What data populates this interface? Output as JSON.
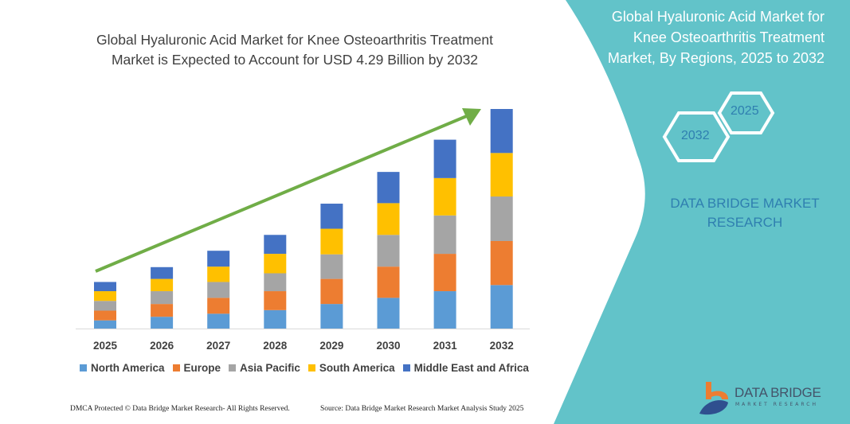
{
  "header": {
    "title_line1": "Global Hyaluronic Acid Market for Knee Osteoarthritis Treatment",
    "title_line2": "Market is Expected to Account for USD 4.29 Billion by 2032"
  },
  "side_panel": {
    "title_line1": "Global Hyaluronic Acid Market for",
    "title_line2": "Knee Osteoarthritis Treatment",
    "title_line3": "Market, By Regions, 2025 to 2032",
    "hex_start": "2025",
    "hex_end": "2032",
    "brand_line1": "DATA BRIDGE MARKET",
    "brand_line2": "RESEARCH",
    "color": "#62c3c9"
  },
  "chart_data": {
    "type": "bar",
    "stacked": true,
    "categories": [
      "2025",
      "2026",
      "2027",
      "2028",
      "2029",
      "2030",
      "2031",
      "2032"
    ],
    "series": [
      {
        "name": "North America",
        "color": "#5b9bd5",
        "values": [
          0.16,
          0.23,
          0.29,
          0.36,
          0.48,
          0.6,
          0.73,
          0.85
        ]
      },
      {
        "name": "Europe",
        "color": "#ed7d31",
        "values": [
          0.19,
          0.25,
          0.31,
          0.37,
          0.49,
          0.61,
          0.73,
          0.86
        ]
      },
      {
        "name": "Asia Pacific",
        "color": "#a5a5a5",
        "values": [
          0.19,
          0.25,
          0.31,
          0.35,
          0.48,
          0.62,
          0.75,
          0.87
        ]
      },
      {
        "name": "South America",
        "color": "#ffc000",
        "values": [
          0.19,
          0.24,
          0.3,
          0.38,
          0.5,
          0.62,
          0.73,
          0.85
        ]
      },
      {
        "name": "Middle East and Africa",
        "color": "#4472c4",
        "values": [
          0.18,
          0.23,
          0.31,
          0.37,
          0.49,
          0.61,
          0.75,
          0.86
        ]
      }
    ],
    "legend_position": "bottom",
    "grid": false,
    "y_axis_shown": false,
    "trend_arrow_color": "#70ad47"
  },
  "footer": {
    "copyright": "DMCA Protected © Data Bridge Market Research- All Rights Reserved.",
    "source": "Source: Data Bridge Market Research  Market Analysis Study 2025"
  },
  "logo": {
    "name": "DATA BRIDGE",
    "tagline": "MARKET RESEARCH"
  }
}
